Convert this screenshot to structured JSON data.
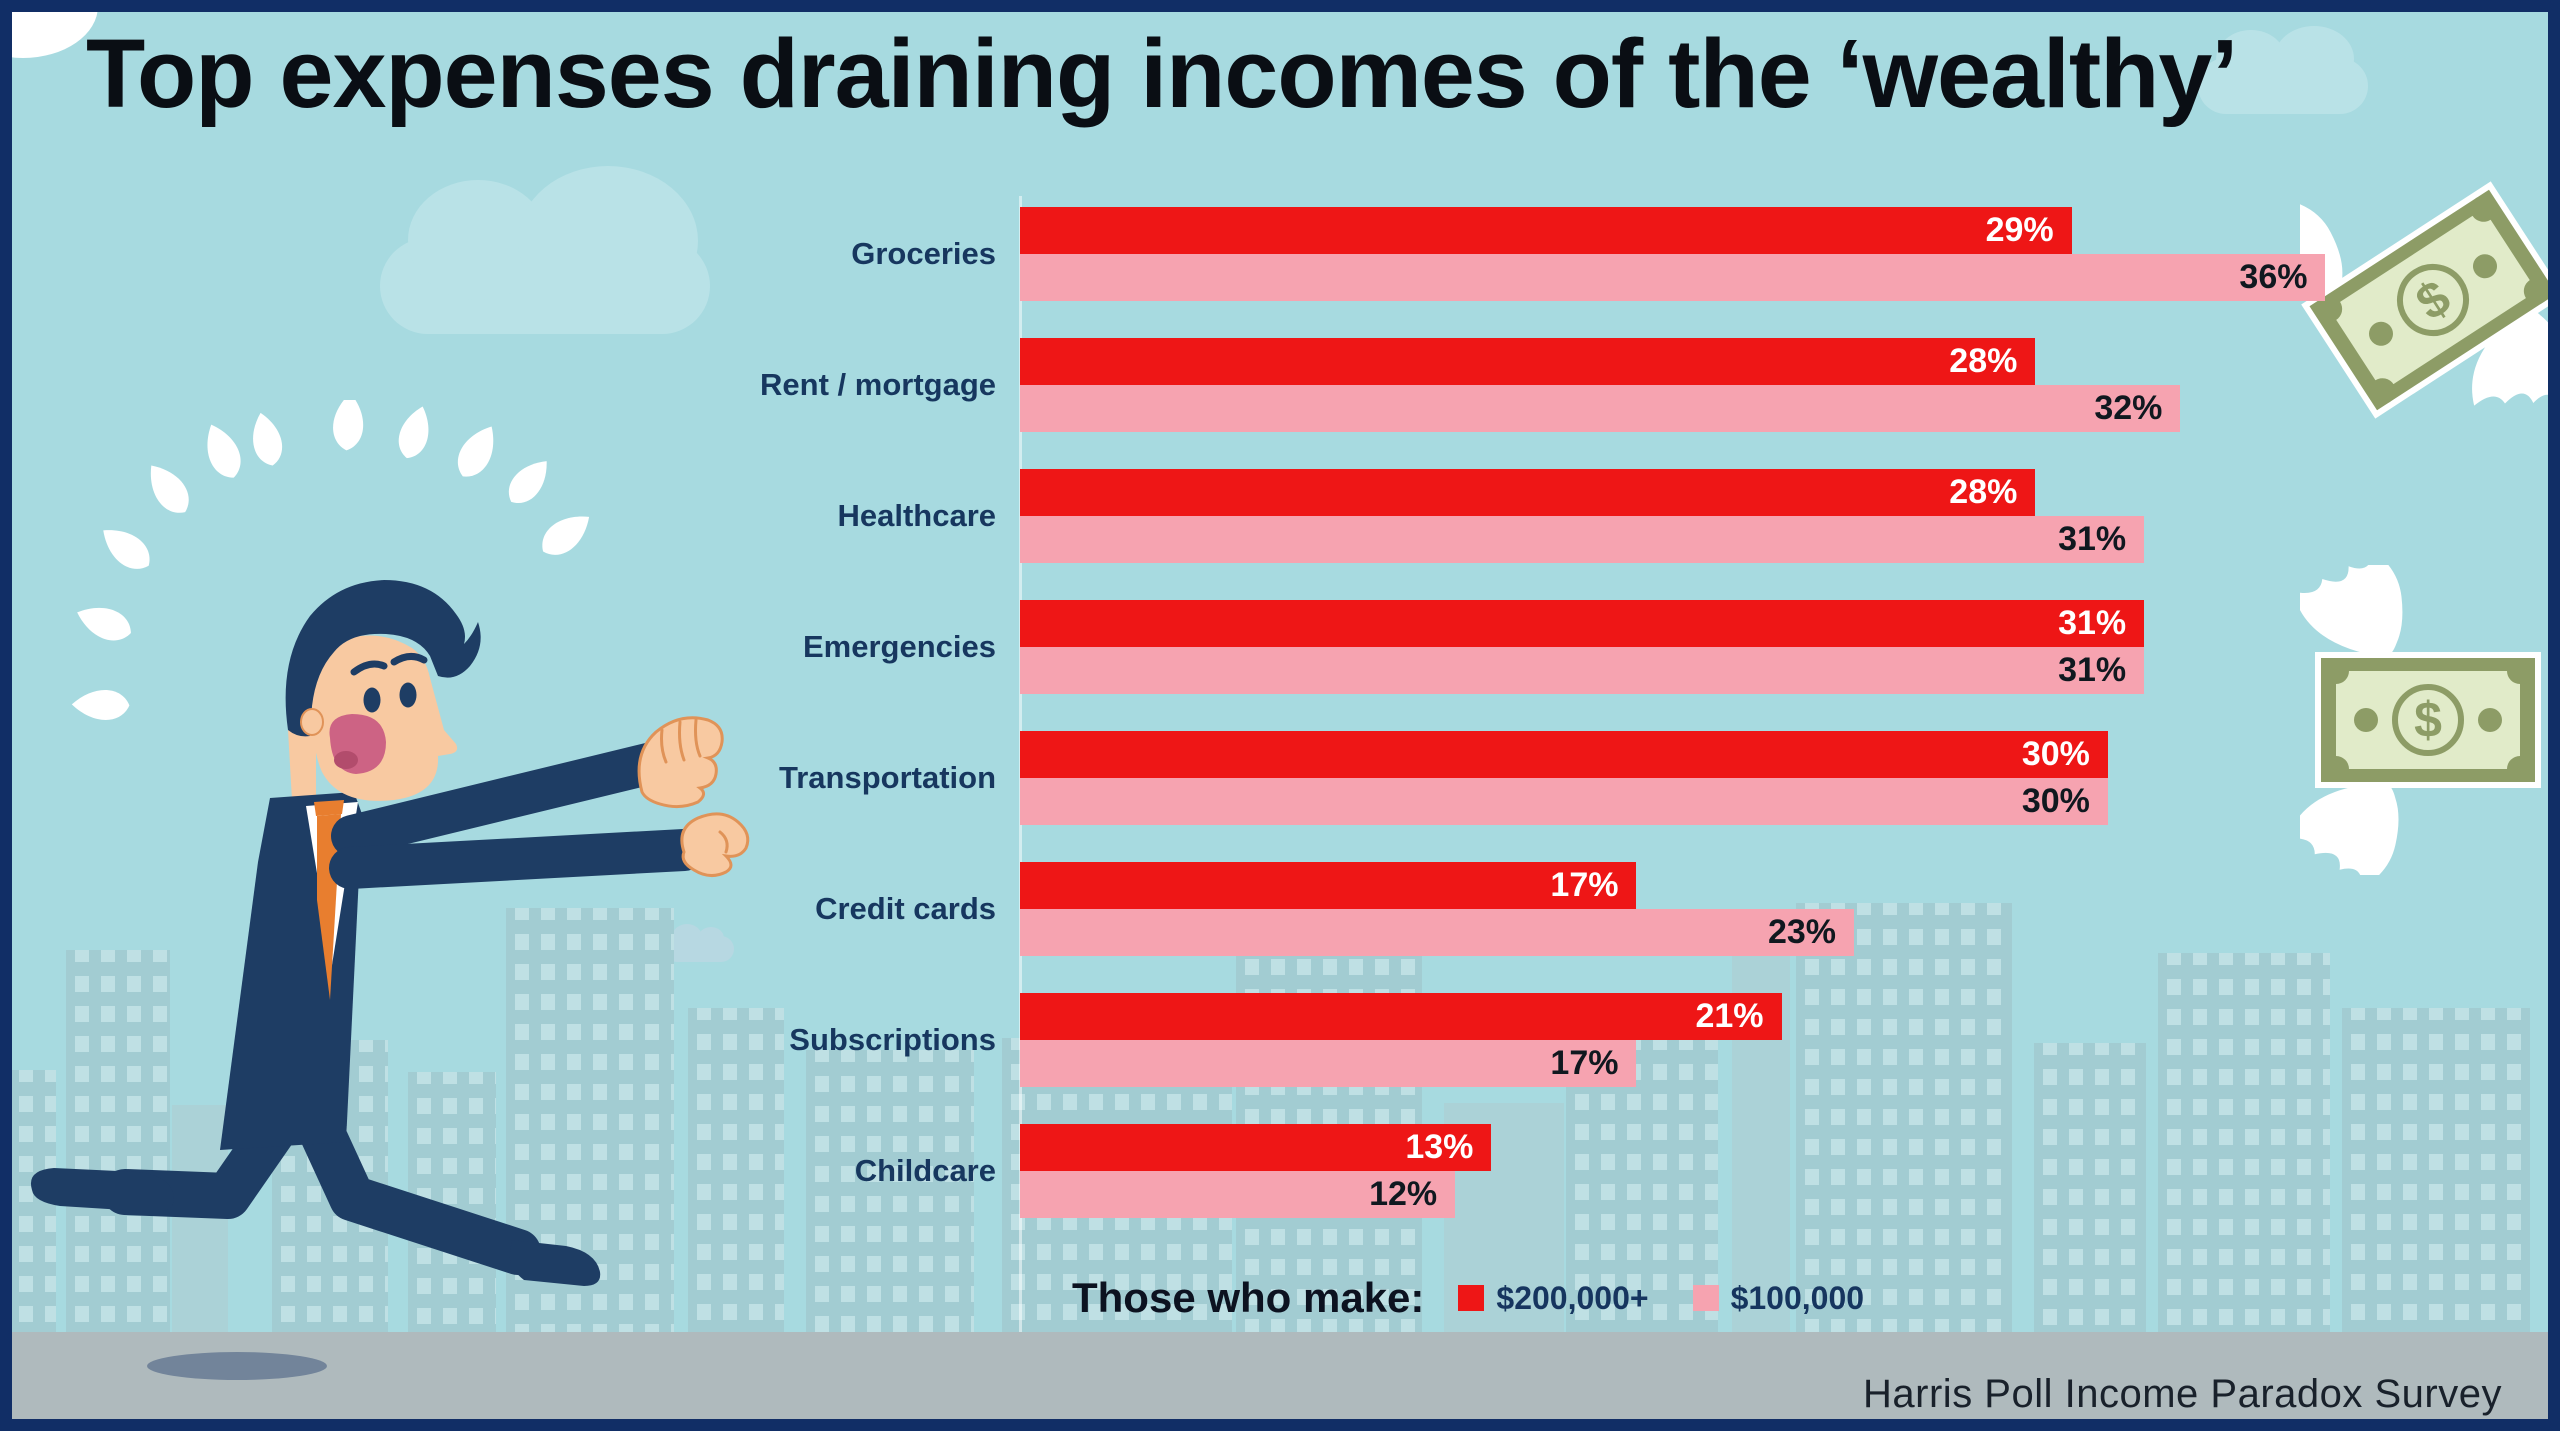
{
  "title": "Top expenses draining incomes of the ‘wealthy’",
  "legend": {
    "prefix": "Those who make:",
    "series": [
      {
        "label": "$200,000+",
        "color": "#ee1616"
      },
      {
        "label": "$100,000",
        "color": "#f6a3b0"
      }
    ]
  },
  "footer": {
    "source": "Harris Poll Income Paradox Survey"
  },
  "icons": {
    "dollar_symbol": "$"
  },
  "style": {
    "background": "#a7dae0",
    "frame": "#112e66",
    "ground": "#afbabd"
  },
  "chart_data": {
    "type": "bar",
    "orientation": "horizontal",
    "title": "Top expenses draining incomes of the ‘wealthy’",
    "categories": [
      "Groceries",
      "Rent / mortgage",
      "Healthcare",
      "Emergencies",
      "Transportation",
      "Credit cards",
      "Subscriptions",
      "Childcare"
    ],
    "series": [
      {
        "name": "$200,000+",
        "color": "#ee1616",
        "values": [
          29,
          28,
          28,
          31,
          30,
          17,
          21,
          13
        ]
      },
      {
        "name": "$100,000",
        "color": "#f6a3b0",
        "values": [
          36,
          32,
          31,
          31,
          30,
          23,
          17,
          12
        ]
      }
    ],
    "value_suffix": "%",
    "xlim": [
      0,
      38
    ],
    "grid": false,
    "legend_position": "bottom",
    "source": "Harris Poll Income Paradox Survey"
  }
}
